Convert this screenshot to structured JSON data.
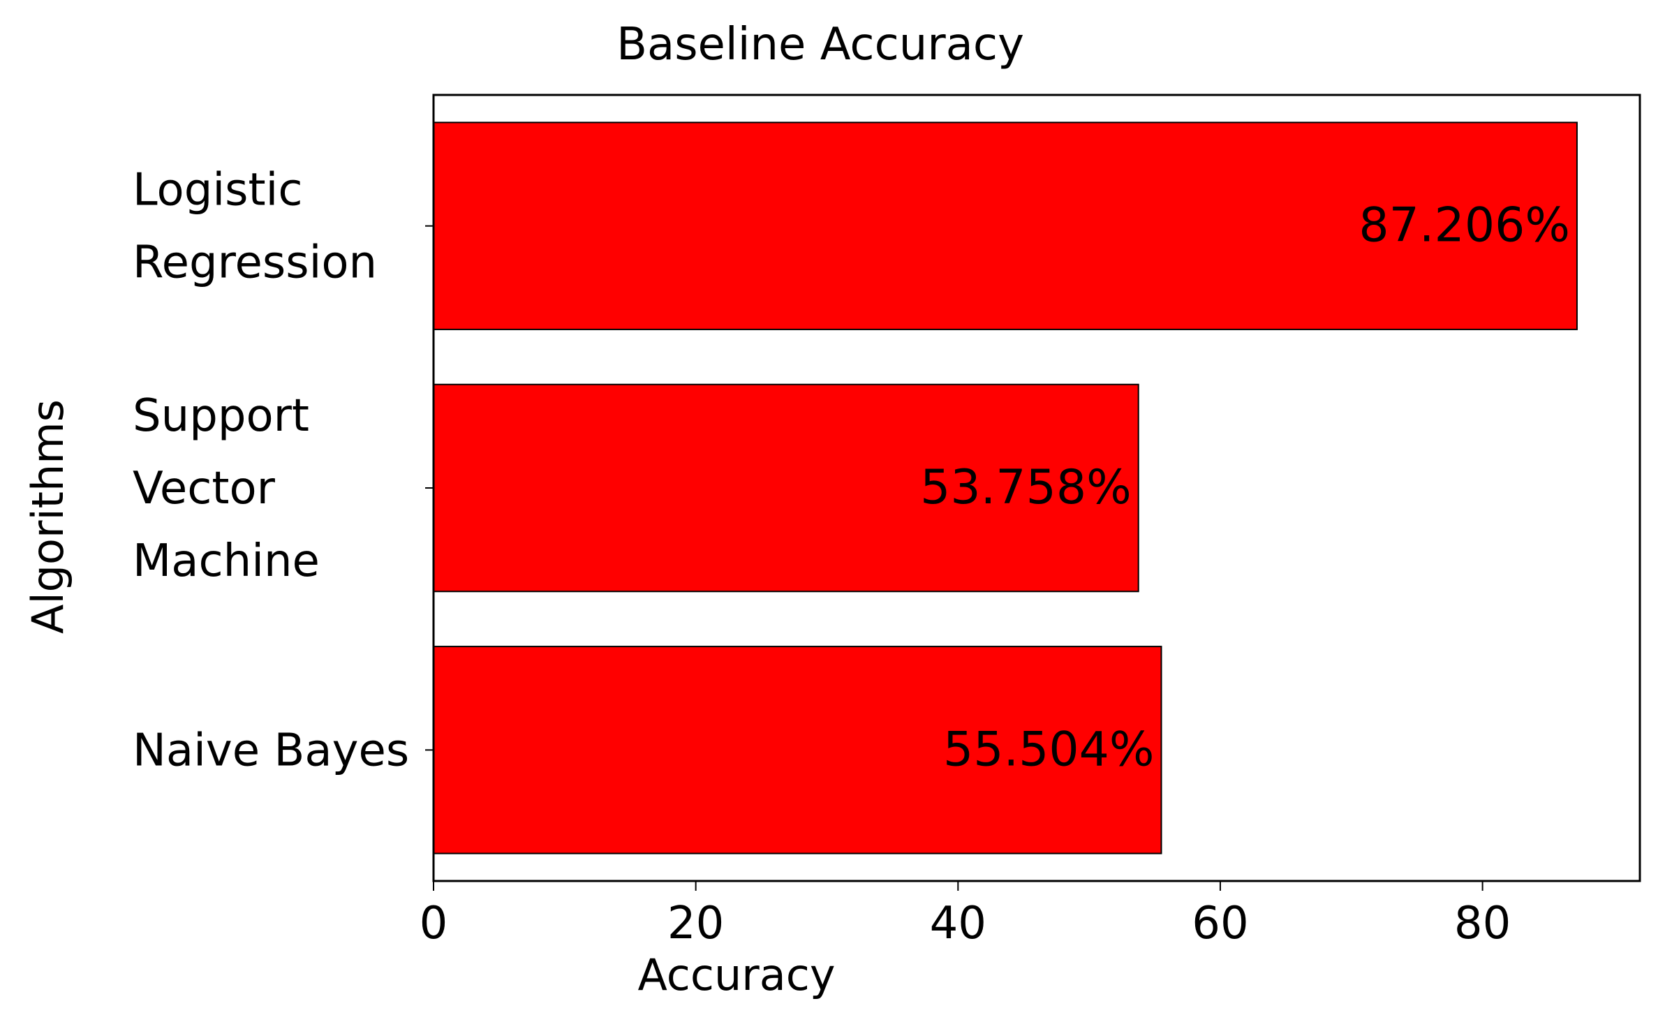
{
  "chart_data": {
    "type": "bar",
    "orientation": "horizontal",
    "title": "Baseline Accuracy",
    "xlabel": "Accuracy",
    "ylabel": "Algorithms",
    "xlim": [
      0,
      92
    ],
    "x_ticks": [
      0,
      20,
      40,
      60,
      80
    ],
    "categories": [
      [
        "Logistic",
        "Regression"
      ],
      [
        "Support",
        "Vector",
        "Machine"
      ],
      [
        "Naive Bayes"
      ]
    ],
    "values": [
      87.206,
      53.758,
      55.504
    ],
    "data_labels": [
      "87.206%",
      "53.758%",
      "55.504%"
    ],
    "bar_color": "#ff0000",
    "bar_edge_color": "#000000",
    "grid": false,
    "legend": "none"
  }
}
